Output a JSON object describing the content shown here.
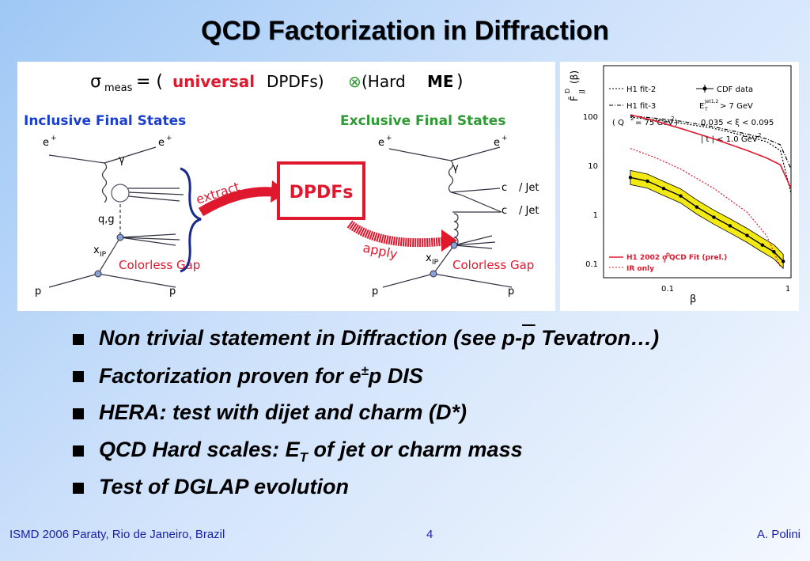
{
  "title": "QCD Factorization in Diffraction",
  "diagram": {
    "formula_sigma": "σ",
    "formula_sub": "meas",
    "formula_eq": "= (",
    "formula_universal": "universal",
    "formula_dpdfs": " DPDFs)",
    "formula_otimes": "⊗",
    "formula_hard": " (Hard ",
    "formula_me": "ME",
    "formula_close": ")",
    "inclusive_label": "Inclusive Final States",
    "exclusive_label": "Exclusive Final States",
    "extract_label": "extract",
    "apply_label": "apply",
    "dpdfs_box": "DPDFs",
    "e_plus": "e",
    "plus": "+",
    "gamma": "γ",
    "qg": "q,g",
    "xip": "x",
    "ip_sub": "IP",
    "colorless_gap": "Colorless Gap",
    "p": "p",
    "c": "c",
    "jet": "/ Jet"
  },
  "plot": {
    "ylabel": "F̄",
    "ylabel_sup": "D",
    "ylabel_sub": "JJ",
    "ylabel_arg": "(β)",
    "xlabel": "β",
    "legend_h1_fit2": "H1 fit-2",
    "legend_h1_fit3": "H1 fit-3",
    "legend_q2": "( Q",
    "legend_q2_rest": "= 75 GeV",
    "legend_q2_end": " )",
    "legend_cdf": "CDF data",
    "legend_et": "E",
    "legend_et_sup": "Jet1,2",
    "legend_et_sub": "T",
    "legend_et_rest": " > 7 GeV",
    "legend_xi": "0.035 < ξ < 0.095",
    "legend_t": "| t | < 1.0 GeV",
    "legend_h1_2002": "H1 2002 σ",
    "legend_h1_2002_rest": " QCD Fit (prel.)",
    "legend_r": "r",
    "legend_d": "D",
    "legend_ir": "IR only",
    "sq2": "2",
    "y_ticks": [
      "100",
      "10",
      "1",
      "0.1"
    ],
    "x_ticks": [
      "0.1",
      "1"
    ]
  },
  "chart_data": {
    "type": "line",
    "title": "",
    "xlabel": "β",
    "ylabel": "F̄_JJ^D (β)",
    "xscale": "log",
    "yscale": "log",
    "xlim": [
      0.02,
      1
    ],
    "ylim": [
      0.05,
      400
    ],
    "series": [
      {
        "name": "CDF data",
        "x": [
          0.035,
          0.05,
          0.07,
          0.1,
          0.14,
          0.2,
          0.28,
          0.4,
          0.55,
          0.7,
          0.85
        ],
        "y": [
          3.5,
          3.0,
          2.2,
          1.6,
          1.0,
          0.65,
          0.45,
          0.3,
          0.2,
          0.15,
          0.1
        ]
      },
      {
        "name": "H1 fit-2",
        "x": [
          0.035,
          0.06,
          0.1,
          0.2,
          0.4,
          0.6,
          0.8,
          1.0
        ],
        "y": [
          45,
          40,
          35,
          28,
          20,
          16,
          11,
          1.8
        ]
      },
      {
        "name": "H1 fit-3",
        "x": [
          0.035,
          0.06,
          0.1,
          0.2,
          0.4,
          0.6,
          0.8,
          1.0
        ],
        "y": [
          48,
          43,
          38,
          30,
          22,
          18,
          14,
          5
        ]
      },
      {
        "name": "H1 2002 σ_r^D QCD Fit (prel.)",
        "x": [
          0.035,
          0.06,
          0.1,
          0.2,
          0.4,
          0.6,
          0.8,
          1.0
        ],
        "y": [
          50,
          38,
          28,
          18,
          11,
          8,
          6,
          2.2
        ]
      },
      {
        "name": "IR only",
        "x": [
          0.035,
          0.06,
          0.1,
          0.2,
          0.4,
          0.6,
          0.8
        ],
        "y": [
          12,
          8,
          5,
          2.2,
          0.8,
          0.3,
          0.08
        ]
      }
    ]
  },
  "bullets": [
    {
      "text": "Non trivial statement in Diffraction (see p-",
      "pbar": "p",
      "after": " Tevatron…)"
    },
    {
      "text": "Factorization proven for e",
      "sup": "±",
      "after": "p DIS"
    },
    {
      "text": "HERA: test with dijet and charm (D*)"
    },
    {
      "text": "QCD Hard scales: E",
      "sub": "T",
      "after": " of jet or charm mass"
    },
    {
      "text": "Test of DGLAP evolution"
    }
  ],
  "footer": {
    "left": "ISMD 2006 Paraty, Rio de Janeiro, Brazil",
    "page": "4",
    "right": "A. Polini"
  }
}
